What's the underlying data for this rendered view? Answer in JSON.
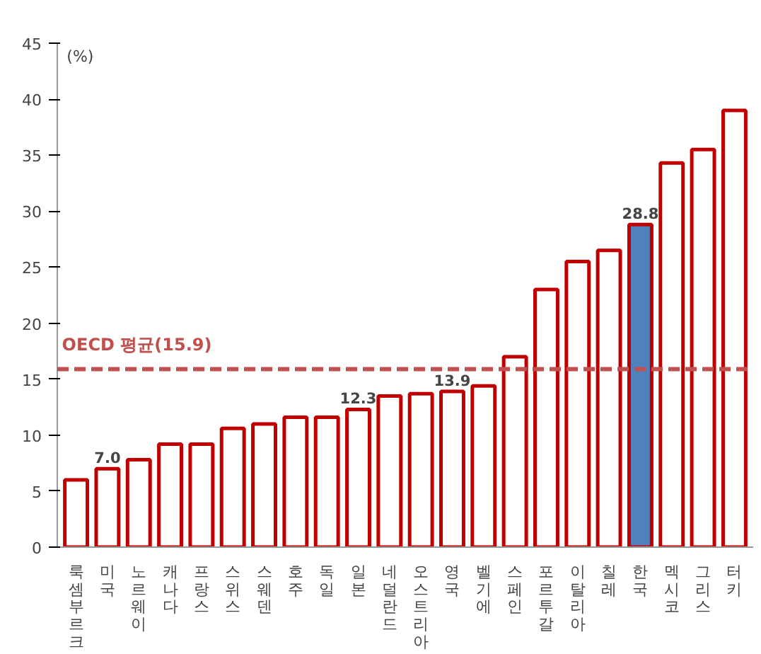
{
  "chart_data": {
    "type": "bar",
    "categories": [
      "룩셈부르크",
      "미국",
      "노르웨이",
      "캐나다",
      "프랑스",
      "스위스",
      "스웨덴",
      "호주",
      "독일",
      "일본",
      "네덜란드",
      "오스트리아",
      "영국",
      "벨기에",
      "스페인",
      "포르투갈",
      "이탈리아",
      "칠레",
      "한국",
      "멕시코",
      "그리스",
      "터키"
    ],
    "values": [
      6.0,
      7.0,
      7.8,
      9.2,
      9.2,
      10.6,
      11.0,
      11.6,
      11.6,
      12.3,
      13.5,
      13.7,
      13.9,
      14.4,
      17.0,
      23.0,
      25.5,
      26.5,
      28.8,
      34.3,
      35.5,
      39.0
    ],
    "value_labels": [
      null,
      "7.0",
      null,
      null,
      null,
      null,
      null,
      null,
      null,
      "12.3",
      null,
      null,
      "13.9",
      null,
      null,
      null,
      null,
      null,
      "28.8",
      null,
      null,
      null
    ],
    "colors": [
      "#ffffff",
      "#ffffff",
      "#ffffff",
      "#ffffff",
      "#ffffff",
      "#ffffff",
      "#ffffff",
      "#ffffff",
      "#ffffff",
      "#ffffff",
      "#ffffff",
      "#ffffff",
      "#ffffff",
      "#ffffff",
      "#ffffff",
      "#ffffff",
      "#ffffff",
      "#ffffff",
      "#4f81bd",
      "#ffffff",
      "#ffffff",
      "#ffffff"
    ],
    "ylim": [
      0,
      45
    ],
    "yticks": [
      0,
      5,
      10,
      15,
      20,
      25,
      30,
      35,
      40,
      45
    ],
    "annotations": [
      "(%)"
    ],
    "ref_lines": [
      {
        "axis": "y",
        "value": 15.9,
        "label": "OECD 평균(15.9)",
        "color": "#c0504d",
        "line_style": "dashed"
      }
    ],
    "grid": false
  }
}
